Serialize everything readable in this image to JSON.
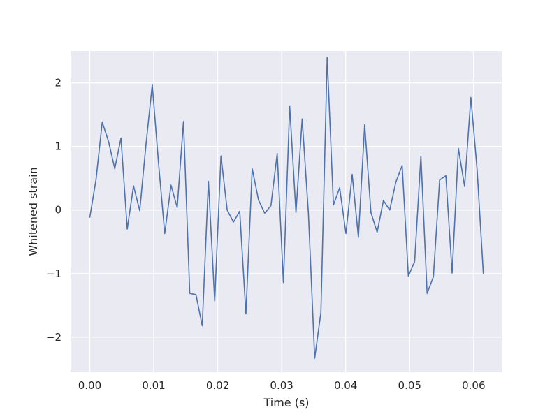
{
  "chart_data": {
    "type": "line",
    "title": "",
    "xlabel": "Time (s)",
    "ylabel": "Whitened strain",
    "xlim": [
      -0.003,
      0.0645
    ],
    "ylim": [
      -2.55,
      2.5
    ],
    "grid": true,
    "x_ticks": [
      {
        "value": 0.0,
        "label": "0.00"
      },
      {
        "value": 0.01,
        "label": "0.01"
      },
      {
        "value": 0.02,
        "label": "0.02"
      },
      {
        "value": 0.03,
        "label": "0.03"
      },
      {
        "value": 0.04,
        "label": "0.04"
      },
      {
        "value": 0.05,
        "label": "0.05"
      },
      {
        "value": 0.06,
        "label": "0.06"
      }
    ],
    "y_ticks": [
      {
        "value": 2,
        "label": "2"
      },
      {
        "value": 1,
        "label": "1"
      },
      {
        "value": 0,
        "label": "0"
      },
      {
        "value": -1,
        "label": "−1"
      },
      {
        "value": -2,
        "label": "−2"
      }
    ],
    "colors": {
      "background": "#eaeaf2",
      "grid": "#ffffff",
      "line": "#4c72b0"
    },
    "series": [
      {
        "x": [
          0.0,
          0.00098,
          0.00195,
          0.00293,
          0.00391,
          0.00488,
          0.00586,
          0.00684,
          0.00781,
          0.00879,
          0.00977,
          0.01074,
          0.01172,
          0.0127,
          0.01367,
          0.01465,
          0.01563,
          0.0166,
          0.01758,
          0.01855,
          0.01953,
          0.02051,
          0.02148,
          0.02246,
          0.02344,
          0.02441,
          0.02539,
          0.02637,
          0.02734,
          0.02832,
          0.0293,
          0.03027,
          0.03125,
          0.03223,
          0.0332,
          0.03418,
          0.03516,
          0.03613,
          0.03711,
          0.03809,
          0.03906,
          0.04004,
          0.04102,
          0.04199,
          0.04297,
          0.04395,
          0.04492,
          0.0459,
          0.04688,
          0.04785,
          0.04883,
          0.0498,
          0.05078,
          0.05176,
          0.05273,
          0.05371,
          0.05469,
          0.05566,
          0.05664,
          0.05762,
          0.05859,
          0.05957,
          0.06055,
          0.06152
        ],
        "values": [
          -0.12,
          0.48,
          1.38,
          1.08,
          0.65,
          1.13,
          -0.3,
          0.38,
          -0.01,
          1.03,
          1.97,
          0.75,
          -0.37,
          0.39,
          0.04,
          1.39,
          -1.31,
          -1.33,
          -1.82,
          0.45,
          -1.43,
          0.85,
          0.0,
          -0.19,
          -0.02,
          -1.63,
          0.65,
          0.16,
          -0.05,
          0.07,
          0.89,
          -1.14,
          1.63,
          -0.04,
          1.43,
          -0.06,
          -2.33,
          -1.61,
          2.4,
          0.08,
          0.35,
          -0.37,
          0.56,
          -0.43,
          1.34,
          -0.04,
          -0.35,
          0.15,
          0.0,
          0.44,
          0.7,
          -1.04,
          -0.81,
          0.85,
          -1.31,
          -1.05,
          0.47,
          0.54,
          -0.99,
          0.97,
          0.37,
          1.77,
          0.63,
          -1.0
        ]
      }
    ]
  }
}
